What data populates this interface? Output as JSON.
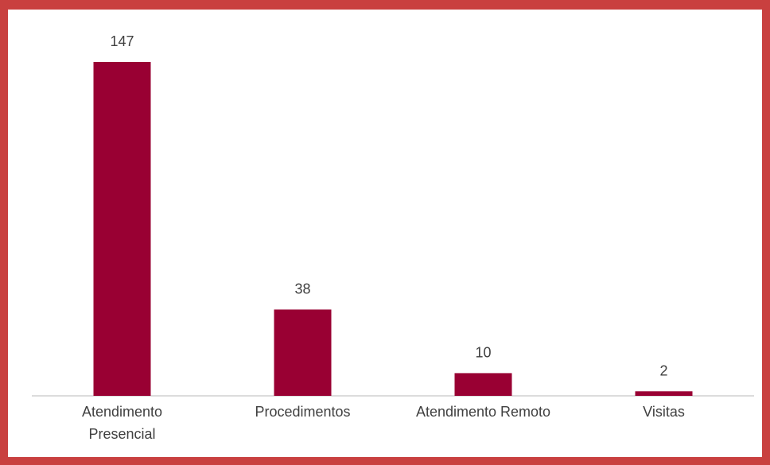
{
  "chart_data": {
    "type": "bar",
    "categories": [
      "Atendimento Presencial",
      "Procedimentos",
      "Atendimento Remoto",
      "Visitas"
    ],
    "values": [
      147,
      38,
      10,
      2
    ],
    "color": "#990033"
  }
}
